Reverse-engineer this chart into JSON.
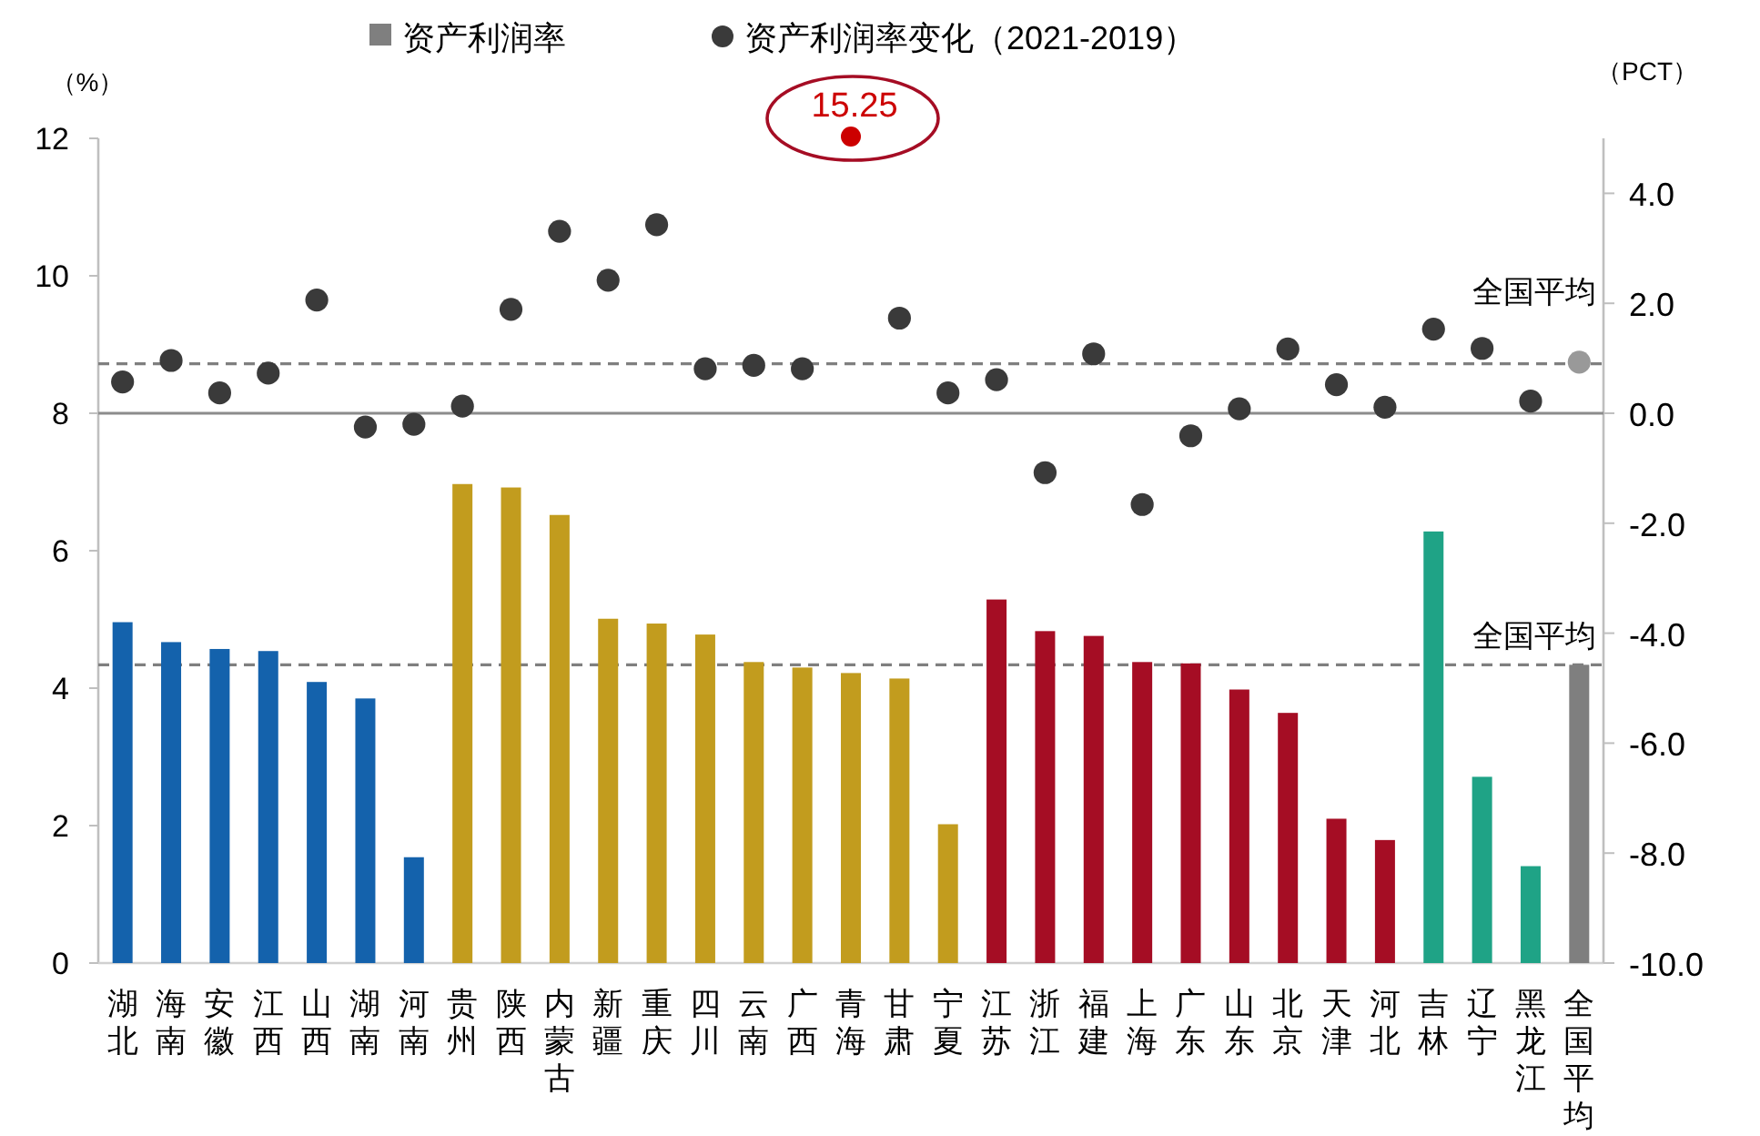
{
  "chart_data": {
    "type": "bar",
    "ylabel": "（%）",
    "y2label": "（PCT）",
    "legend": "top",
    "categories": [
      "湖北",
      "海南",
      "安徽",
      "江西",
      "山西",
      "湖南",
      "河南",
      "贵州",
      "陕西",
      "内蒙古",
      "新疆",
      "重庆",
      "四川",
      "云南",
      "广西",
      "青海",
      "甘肃",
      "宁夏",
      "江苏",
      "浙江",
      "福建",
      "上海",
      "广东",
      "山东",
      "北京",
      "天津",
      "河北",
      "吉林",
      "辽宁",
      "黑龙江",
      "全国平均"
    ],
    "series": [
      {
        "name": "资产利润率",
        "color": "#7f7f7f",
        "values": [
          4.96,
          4.67,
          4.57,
          4.54,
          4.09,
          3.85,
          1.54,
          6.97,
          6.92,
          6.52,
          5.01,
          4.94,
          4.78,
          4.38,
          4.3,
          4.22,
          4.14,
          2.02,
          5.29,
          4.83,
          4.76,
          4.38,
          4.36,
          3.98,
          3.64,
          2.1,
          1.79,
          6.28,
          2.71,
          1.41,
          4.34
        ],
        "colors": [
          "#1462ac",
          "#1462ac",
          "#1462ac",
          "#1462ac",
          "#1462ac",
          "#1462ac",
          "#1462ac",
          "#c29c1e",
          "#c29c1e",
          "#c29c1e",
          "#c29c1e",
          "#c29c1e",
          "#c29c1e",
          "#c29c1e",
          "#c29c1e",
          "#c29c1e",
          "#c29c1e",
          "#c29c1e",
          "#a50d24",
          "#a50d24",
          "#a50d24",
          "#a50d24",
          "#a50d24",
          "#a50d24",
          "#a50d24",
          "#a50d24",
          "#a50d24",
          "#1fa386",
          "#1fa386",
          "#1fa386",
          "#7f7f7f"
        ]
      },
      {
        "name": "资产利润率变化（2021-2019）",
        "type": "scatter",
        "axis": "y2",
        "marker": "circle",
        "color": "#3a3a3a",
        "values": [
          0.57,
          0.96,
          0.37,
          0.73,
          2.06,
          -0.25,
          -0.2,
          0.13,
          1.89,
          3.31,
          2.42,
          3.43,
          0.81,
          0.87,
          0.81,
          null,
          1.73,
          0.37,
          0.61,
          -1.08,
          1.08,
          -1.66,
          -0.41,
          0.08,
          1.17,
          0.52,
          0.11,
          1.53,
          1.18,
          0.22,
          0.93
        ],
        "colors": [
          "#3a3a3a",
          "#3a3a3a",
          "#3a3a3a",
          "#3a3a3a",
          "#3a3a3a",
          "#3a3a3a",
          "#3a3a3a",
          "#3a3a3a",
          "#3a3a3a",
          "#3a3a3a",
          "#3a3a3a",
          "#3a3a3a",
          "#3a3a3a",
          "#3a3a3a",
          "#3a3a3a",
          "#3a3a3a",
          "#3a3a3a",
          "#3a3a3a",
          "#3a3a3a",
          "#3a3a3a",
          "#3a3a3a",
          "#3a3a3a",
          "#3a3a3a",
          "#3a3a3a",
          "#3a3a3a",
          "#3a3a3a",
          "#3a3a3a",
          "#3a3a3a",
          "#3a3a3a",
          "#3a3a3a",
          "#999999"
        ]
      }
    ],
    "ylim": [
      0,
      12
    ],
    "yticks": [
      0,
      2,
      4,
      6,
      8,
      10,
      12
    ],
    "y2lim": [
      -10,
      5
    ],
    "y2ticks": [
      {
        "value": -10,
        "label": "-10.0"
      },
      {
        "value": -8,
        "label": "-8.0"
      },
      {
        "value": -6,
        "label": "-6.0"
      },
      {
        "value": -4,
        "label": "-4.0"
      },
      {
        "value": -2,
        "label": "-2.0"
      },
      {
        "value": 0,
        "label": "0.0"
      },
      {
        "value": 2,
        "label": "2.0"
      },
      {
        "value": 4,
        "label": "4.0"
      }
    ],
    "ref_lines": [
      {
        "axis": "y",
        "value": 4.34,
        "label": "全国平均",
        "color": "#7f7f7f",
        "line_style": "dashed"
      },
      {
        "axis": "y2",
        "value": 0.9,
        "label": "全国平均",
        "color": "#7f7f7f",
        "line_style": "dashed"
      },
      {
        "axis": "y2",
        "value": 0,
        "color": "#8c8c8c",
        "line_style": "solid"
      }
    ],
    "annotations": [
      "15.25"
    ],
    "grid": false
  }
}
